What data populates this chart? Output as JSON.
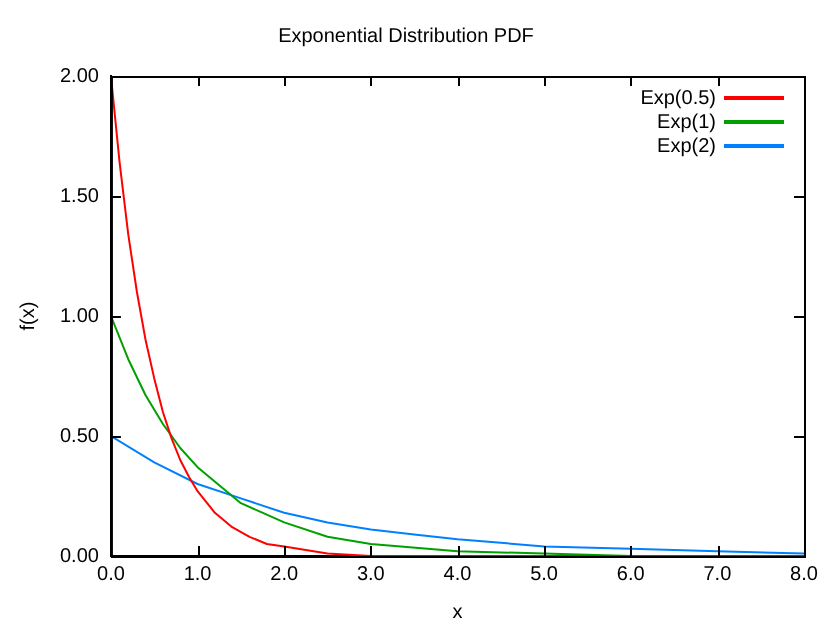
{
  "chart_data": {
    "type": "line",
    "title": "Exponential Distribution PDF",
    "xlabel": "x",
    "ylabel": "f(x)",
    "xlim": [
      0,
      8
    ],
    "xticks": [
      {
        "value": 0,
        "label": "0.0"
      },
      {
        "value": 1,
        "label": "1.0"
      },
      {
        "value": 2,
        "label": "2.0"
      },
      {
        "value": 3,
        "label": "3.0"
      },
      {
        "value": 4,
        "label": "4.0"
      },
      {
        "value": 5,
        "label": "5.0"
      },
      {
        "value": 6,
        "label": "6.0"
      },
      {
        "value": 7,
        "label": "7.0"
      },
      {
        "value": 8,
        "label": "8.0"
      }
    ],
    "ylim": [
      0,
      2
    ],
    "yticks": [
      {
        "value": 0,
        "label": "0.00"
      },
      {
        "value": 0.5,
        "label": "0.50"
      },
      {
        "value": 1,
        "label": "1.00"
      },
      {
        "value": 1.5,
        "label": "1.50"
      },
      {
        "value": 2,
        "label": "2.00"
      }
    ],
    "grid": false,
    "legend": "top right",
    "marker": "none",
    "line_style": "solid",
    "series": [
      {
        "name": "Exp(0.5)",
        "color": "#ff0000",
        "x": [
          0,
          0.1,
          0.2,
          0.3,
          0.4,
          0.5,
          0.6,
          0.7,
          0.8,
          0.9,
          1,
          1.2,
          1.4,
          1.6,
          1.8,
          2,
          2.5,
          3,
          4,
          5,
          6,
          7,
          8
        ],
        "values": [
          2,
          1.64,
          1.34,
          1.1,
          0.9,
          0.74,
          0.6,
          0.49,
          0.4,
          0.33,
          0.27,
          0.18,
          0.12,
          0.08,
          0.05,
          0.04,
          0.01,
          0,
          0,
          0,
          0,
          0,
          0
        ]
      },
      {
        "name": "Exp(1)",
        "color": "#00a000",
        "x": [
          0,
          0.2,
          0.4,
          0.6,
          0.8,
          1,
          1.5,
          2,
          2.5,
          3,
          4,
          5,
          6,
          7,
          8
        ],
        "values": [
          1,
          0.82,
          0.67,
          0.55,
          0.45,
          0.37,
          0.22,
          0.14,
          0.08,
          0.05,
          0.02,
          0.01,
          0,
          0,
          0
        ]
      },
      {
        "name": "Exp(2)",
        "color": "#0080ff",
        "x": [
          0,
          0.5,
          1,
          1.5,
          2,
          2.5,
          3,
          3.5,
          4,
          5,
          6,
          7,
          8
        ],
        "values": [
          0.5,
          0.39,
          0.3,
          0.24,
          0.18,
          0.14,
          0.11,
          0.09,
          0.07,
          0.04,
          0.03,
          0.02,
          0.01
        ]
      }
    ]
  }
}
